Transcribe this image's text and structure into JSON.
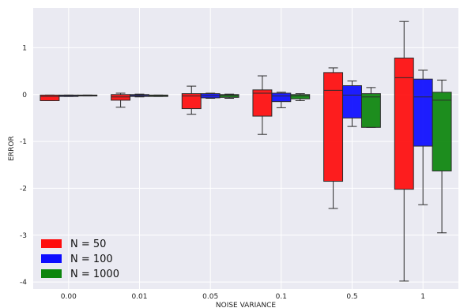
{
  "chart_data": {
    "type": "boxplot",
    "xlabel": "NOISE VARIANCE",
    "ylabel": "ERROR",
    "categories": [
      "0.00",
      "0.01",
      "0.05",
      "0.1",
      "0.5",
      "1"
    ],
    "ylim": [
      -4.15,
      1.85
    ],
    "yticks": [
      -4,
      -3,
      -2,
      -1,
      0,
      1
    ],
    "grid": true,
    "legend_position": "bottom-left",
    "series": [
      {
        "name": "N = 50",
        "color": "#ff0000",
        "boxes": [
          {
            "whislo": -0.13,
            "q1": -0.13,
            "med": -0.04,
            "q3": -0.01,
            "whishi": -0.01
          },
          {
            "whislo": -0.27,
            "q1": -0.12,
            "med": -0.05,
            "q3": 0.0,
            "whishi": 0.03
          },
          {
            "whislo": -0.42,
            "q1": -0.3,
            "med": -0.03,
            "q3": 0.02,
            "whishi": 0.18
          },
          {
            "whislo": -0.85,
            "q1": -0.46,
            "med": 0.03,
            "q3": 0.1,
            "whishi": 0.4
          },
          {
            "whislo": -2.43,
            "q1": -1.85,
            "med": 0.09,
            "q3": 0.47,
            "whishi": 0.57
          },
          {
            "whislo": -3.98,
            "q1": -2.02,
            "med": 0.36,
            "q3": 0.78,
            "whishi": 1.56
          }
        ]
      },
      {
        "name": "N = 100",
        "color": "#0000ff",
        "boxes": [
          {
            "whislo": -0.04,
            "q1": -0.04,
            "med": -0.02,
            "q3": -0.01,
            "whishi": -0.01
          },
          {
            "whislo": -0.05,
            "q1": -0.04,
            "med": -0.02,
            "q3": 0.0,
            "whishi": 0.01
          },
          {
            "whislo": -0.08,
            "q1": -0.07,
            "med": -0.02,
            "q3": 0.02,
            "whishi": 0.03
          },
          {
            "whislo": -0.28,
            "q1": -0.15,
            "med": -0.03,
            "q3": 0.03,
            "whishi": 0.05
          },
          {
            "whislo": -0.68,
            "q1": -0.5,
            "med": -0.01,
            "q3": 0.19,
            "whishi": 0.29
          },
          {
            "whislo": -2.35,
            "q1": -1.1,
            "med": -0.05,
            "q3": 0.33,
            "whishi": 0.52
          }
        ]
      },
      {
        "name": "N = 1000",
        "color": "#008000",
        "boxes": [
          {
            "whislo": -0.03,
            "q1": -0.03,
            "med": -0.02,
            "q3": -0.01,
            "whishi": -0.01
          },
          {
            "whislo": -0.04,
            "q1": -0.04,
            "med": -0.02,
            "q3": -0.01,
            "whishi": -0.01
          },
          {
            "whislo": -0.08,
            "q1": -0.06,
            "med": -0.02,
            "q3": 0.0,
            "whishi": 0.01
          },
          {
            "whislo": -0.13,
            "q1": -0.09,
            "med": -0.03,
            "q3": 0.0,
            "whishi": 0.02
          },
          {
            "whislo": -0.7,
            "q1": -0.7,
            "med": -0.05,
            "q3": 0.02,
            "whishi": 0.15
          },
          {
            "whislo": -2.95,
            "q1": -1.63,
            "med": -0.12,
            "q3": 0.05,
            "whishi": 0.31
          }
        ]
      }
    ]
  }
}
